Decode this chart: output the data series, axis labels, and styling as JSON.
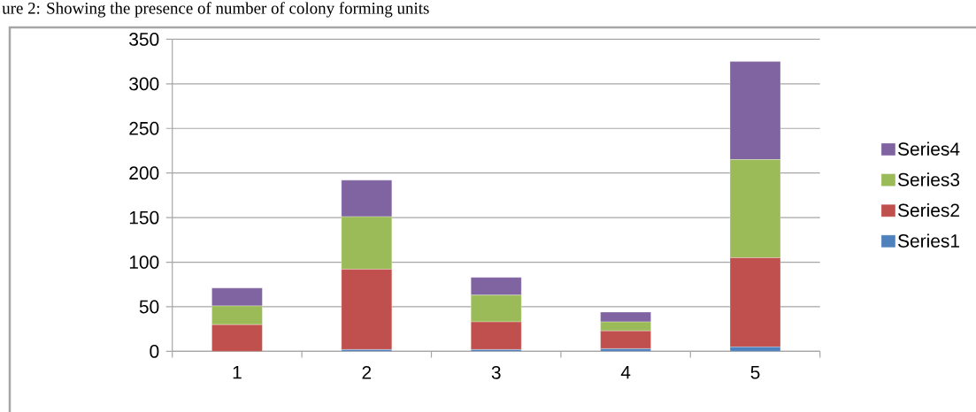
{
  "chart_data": {
    "type": "bar",
    "stacked": true,
    "title": "ure 2: Showing the presence of number of colony forming units",
    "categories": [
      "1",
      "2",
      "3",
      "4",
      "5"
    ],
    "series": [
      {
        "name": "Series1",
        "color": "#4f81bd",
        "values": [
          0,
          2,
          2,
          3,
          5
        ]
      },
      {
        "name": "Series2",
        "color": "#c0504d",
        "values": [
          30,
          90,
          31,
          20,
          100
        ]
      },
      {
        "name": "Series3",
        "color": "#9bbb59",
        "values": [
          21,
          59,
          30,
          10,
          110
        ]
      },
      {
        "name": "Series4",
        "color": "#8064a2",
        "values": [
          20,
          41,
          20,
          11,
          110
        ]
      }
    ],
    "ylim": [
      0,
      350
    ],
    "yticks": [
      0,
      50,
      100,
      150,
      200,
      250,
      300,
      350
    ],
    "grid": "y",
    "legend": "right"
  }
}
